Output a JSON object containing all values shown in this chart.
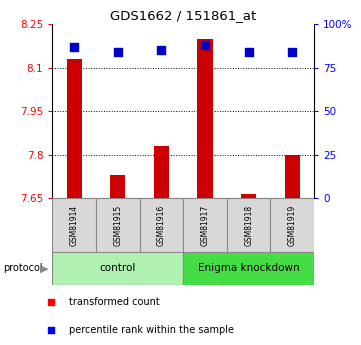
{
  "title": "GDS1662 / 151861_at",
  "samples": [
    "GSM81914",
    "GSM81915",
    "GSM81916",
    "GSM81917",
    "GSM81918",
    "GSM81919"
  ],
  "red_values": [
    8.13,
    7.73,
    7.83,
    8.2,
    7.665,
    7.8
  ],
  "blue_values": [
    87,
    84,
    85,
    88,
    84,
    84
  ],
  "ylim_left": [
    7.65,
    8.25
  ],
  "ylim_right": [
    0,
    100
  ],
  "yticks_left": [
    7.65,
    7.8,
    7.95,
    8.1,
    8.25
  ],
  "yticks_right": [
    0,
    25,
    50,
    75,
    100
  ],
  "ytick_labels_left": [
    "7.65",
    "7.8",
    "7.95",
    "8.1",
    "8.25"
  ],
  "ytick_labels_right": [
    "0",
    "25",
    "50",
    "75",
    "100%"
  ],
  "bar_color": "#cc0000",
  "dot_color": "#0000cc",
  "bar_width": 0.35,
  "dot_size": 28,
  "grid_ticks": [
    7.8,
    7.95,
    8.1
  ],
  "control_color": "#b0f0b0",
  "enigma_color": "#44dd44",
  "sample_box_color": "#d8d8d8",
  "control_label": "control",
  "enigma_label": "Enigma knockdown",
  "protocol_label": "protocol",
  "legend_red_label": "transformed count",
  "legend_blue_label": "percentile rank within the sample"
}
